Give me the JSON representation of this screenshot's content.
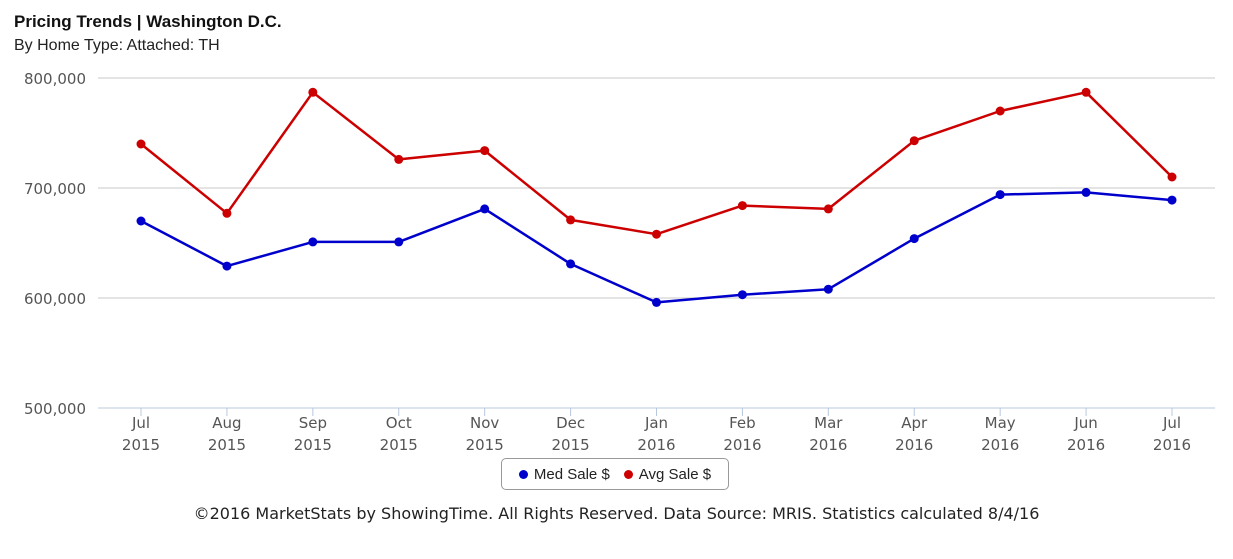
{
  "header": {
    "title": "Pricing Trends | Washington D.C.",
    "subtitle": "By Home Type: Attached: TH"
  },
  "footer": {
    "text": "©2016 MarketStats by ShowingTime. All Rights Reserved. Data Source: MRIS. Statistics calculated 8/4/16"
  },
  "chart_data": {
    "type": "line",
    "title": "Pricing Trends | Washington D.C.",
    "subtitle": "By Home Type: Attached: TH",
    "categories": [
      [
        "Jul",
        "2015"
      ],
      [
        "Aug",
        "2015"
      ],
      [
        "Sep",
        "2015"
      ],
      [
        "Oct",
        "2015"
      ],
      [
        "Nov",
        "2015"
      ],
      [
        "Dec",
        "2015"
      ],
      [
        "Jan",
        "2016"
      ],
      [
        "Feb",
        "2016"
      ],
      [
        "Mar",
        "2016"
      ],
      [
        "Apr",
        "2016"
      ],
      [
        "May",
        "2016"
      ],
      [
        "Jun",
        "2016"
      ],
      [
        "Jul",
        "2016"
      ]
    ],
    "y_ticks": [
      "500,000",
      "600,000",
      "700,000",
      "800,000"
    ],
    "ylim": [
      500000,
      800000
    ],
    "grid": true,
    "legend_position": "bottom-center",
    "series": [
      {
        "name": "Med Sale $",
        "color": "#0000cc",
        "values": [
          670000,
          629000,
          651000,
          651000,
          681000,
          631000,
          596000,
          603000,
          608000,
          654000,
          694000,
          696000,
          689000
        ]
      },
      {
        "name": "Avg Sale $",
        "color": "#cc0000",
        "values": [
          740000,
          677000,
          787000,
          726000,
          734000,
          671000,
          658000,
          684000,
          681000,
          743000,
          770000,
          787000,
          710000
        ]
      }
    ]
  }
}
